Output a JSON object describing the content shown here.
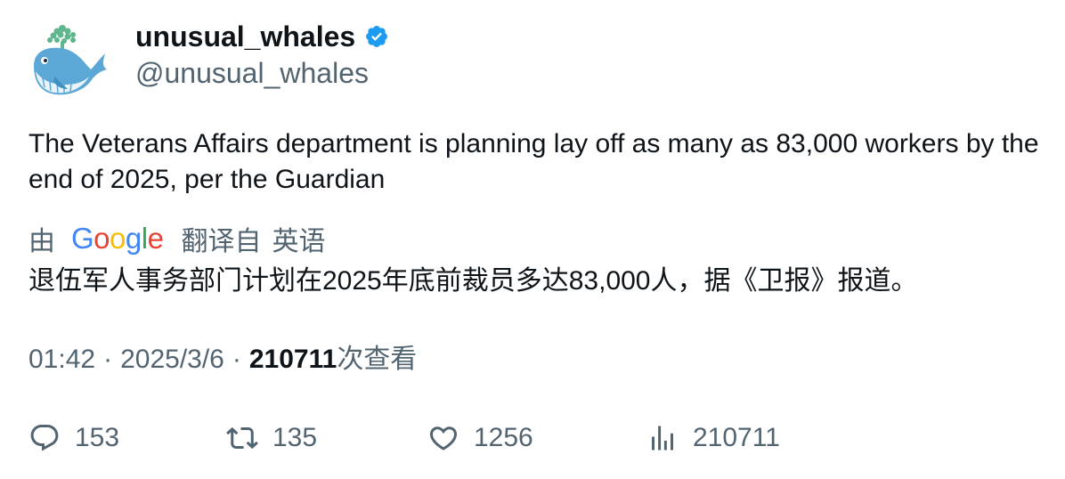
{
  "author": {
    "display_name": "unusual_whales",
    "handle": "@unusual_whales",
    "verified": true,
    "avatar_icon": "whale-logo-icon"
  },
  "tweet": {
    "text": "The Veterans Affairs department is planning lay off as many as 83,000 workers by the end of 2025, per the Guardian"
  },
  "translation": {
    "by_label": "由",
    "provider": "Google",
    "provider_letters": [
      "G",
      "o",
      "o",
      "g",
      "l",
      "e"
    ],
    "translated_from_label": "翻译自",
    "source_language": "英语",
    "text": "退伍军人事务部门计划在2025年底前裁员多达83,000人，据《卫报》报道。"
  },
  "meta": {
    "time": "01:42",
    "separator": "·",
    "date": "2025/3/6",
    "views_count": "210711",
    "views_label": "次查看"
  },
  "actions": {
    "reply": {
      "icon": "reply-bubble-icon",
      "count": "153"
    },
    "retweet": {
      "icon": "retweet-icon",
      "count": "135"
    },
    "like": {
      "icon": "heart-icon",
      "count": "1256"
    },
    "views": {
      "icon": "views-bar-chart-icon",
      "count": "210711"
    }
  },
  "colors": {
    "text_primary": "#0f1419",
    "text_secondary": "#536471",
    "verified_badge": "#1d9bf0",
    "google_blue": "#4285F4",
    "google_red": "#EA4335",
    "google_yellow": "#FBBC05",
    "google_green": "#34A853",
    "whale_blue": "#5ba8d6",
    "whale_spout": "#5fb58c"
  }
}
